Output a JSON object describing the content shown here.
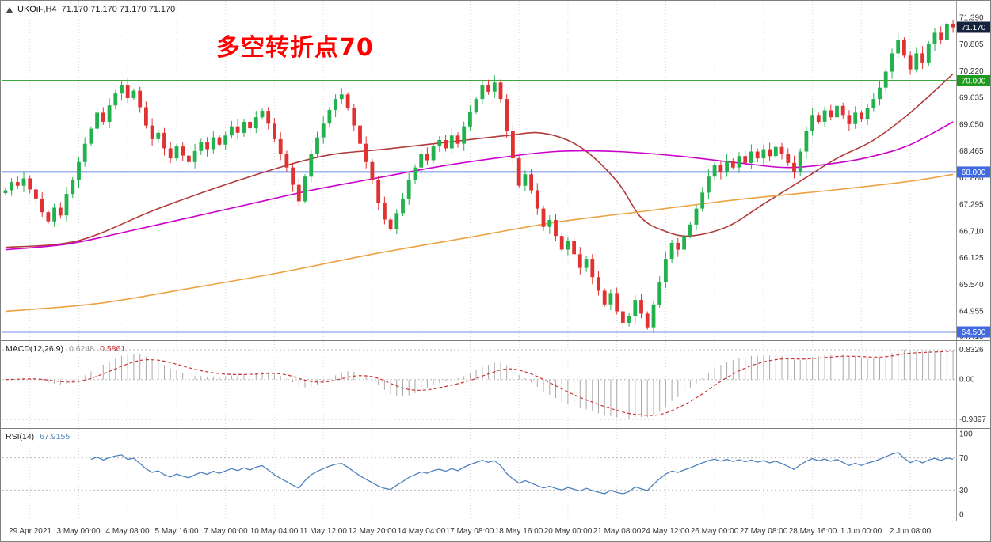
{
  "window": {
    "title": "UKOil-,H4",
    "ohlc": "71.170 71.170 71.170 71.170"
  },
  "annotation": {
    "text": "多空转折点70",
    "color": "#FF0000"
  },
  "colors": {
    "bull": "#22b14c",
    "bear": "#e03232",
    "grid": "#d8d8d8",
    "panel_border": "#7f7f7f",
    "scale_text": "#333333",
    "hist": "#a9a9a9",
    "signal": "#cc3333",
    "rsi_line": "#4f81bd",
    "level_dash": "#bcbcbc",
    "current_tag_bg": "#16233f"
  },
  "chart_data": {
    "type": "candlestick",
    "symbol": "UKOil-",
    "timeframe": "H4",
    "title": "UKOil-,H4 71.170 71.170 71.170 71.170",
    "price_axis": {
      "min": 64.3,
      "max": 71.75,
      "ticks": [
        71.39,
        70.805,
        70.22,
        69.635,
        69.05,
        68.465,
        67.88,
        67.295,
        66.71,
        66.125,
        65.54,
        64.955,
        64.415
      ]
    },
    "current_price": 71.17,
    "hlines": [
      {
        "price": 70.0,
        "label": "70.000",
        "color": "#1e9b1e"
      },
      {
        "price": 68.0,
        "label": "68.000",
        "color": "#4169e1"
      },
      {
        "price": 64.5,
        "label": "64.500",
        "color": "#4169e1"
      }
    ],
    "closes": [
      67.6,
      67.78,
      67.7,
      67.86,
      67.62,
      67.42,
      67.12,
      66.92,
      67.22,
      67.05,
      67.52,
      67.82,
      68.22,
      68.62,
      68.95,
      69.3,
      69.1,
      69.46,
      69.72,
      69.9,
      69.62,
      69.78,
      69.42,
      69.02,
      68.72,
      68.86,
      68.52,
      68.3,
      68.56,
      68.36,
      68.22,
      68.46,
      68.66,
      68.5,
      68.76,
      68.6,
      68.8,
      69.0,
      68.86,
      69.1,
      68.96,
      69.2,
      69.34,
      69.06,
      68.72,
      68.4,
      68.1,
      67.72,
      67.36,
      67.9,
      68.4,
      68.76,
      69.06,
      69.36,
      69.6,
      69.7,
      69.4,
      69.02,
      68.62,
      68.22,
      67.82,
      67.32,
      66.96,
      66.76,
      67.1,
      67.42,
      67.82,
      68.1,
      68.4,
      68.26,
      68.56,
      68.7,
      68.52,
      68.8,
      68.62,
      69.0,
      69.32,
      69.6,
      69.9,
      69.76,
      69.96,
      69.6,
      68.9,
      68.3,
      67.7,
      67.95,
      67.6,
      67.2,
      66.8,
      66.95,
      66.6,
      66.3,
      66.5,
      66.2,
      65.9,
      66.1,
      65.7,
      65.4,
      65.1,
      65.35,
      64.95,
      64.7,
      64.85,
      65.2,
      64.9,
      64.6,
      65.1,
      65.6,
      66.1,
      66.45,
      66.3,
      66.6,
      66.85,
      67.2,
      67.55,
      67.9,
      68.15,
      68.0,
      68.25,
      68.1,
      68.35,
      68.2,
      68.45,
      68.3,
      68.5,
      68.35,
      68.55,
      68.4,
      68.2,
      68.0,
      68.45,
      68.9,
      69.25,
      69.1,
      69.35,
      69.2,
      69.45,
      69.25,
      69.05,
      69.3,
      69.15,
      69.4,
      69.6,
      69.85,
      70.2,
      70.6,
      70.9,
      70.55,
      70.25,
      70.6,
      70.4,
      70.8,
      71.05,
      70.9,
      71.25,
      71.17
    ],
    "ma_lines": [
      {
        "name": "ma-line-red",
        "color": "#b03a3a",
        "points": [
          [
            0,
            66.35
          ],
          [
            12,
            66.5
          ],
          [
            25,
            67.2
          ],
          [
            40,
            67.9
          ],
          [
            52,
            68.35
          ],
          [
            62,
            68.5
          ],
          [
            72,
            68.65
          ],
          [
            82,
            68.8
          ],
          [
            88,
            68.85
          ],
          [
            94,
            68.55
          ],
          [
            100,
            67.8
          ],
          [
            104,
            67.0
          ],
          [
            108,
            66.7
          ],
          [
            112,
            66.6
          ],
          [
            118,
            66.8
          ],
          [
            124,
            67.3
          ],
          [
            130,
            67.8
          ],
          [
            136,
            68.3
          ],
          [
            142,
            68.7
          ],
          [
            148,
            69.3
          ],
          [
            155,
            70.15
          ]
        ]
      },
      {
        "name": "ma-line-magenta",
        "color": "#cc00cc",
        "points": [
          [
            0,
            66.3
          ],
          [
            10,
            66.42
          ],
          [
            20,
            66.7
          ],
          [
            30,
            67.0
          ],
          [
            40,
            67.3
          ],
          [
            50,
            67.6
          ],
          [
            60,
            67.85
          ],
          [
            70,
            68.1
          ],
          [
            80,
            68.3
          ],
          [
            90,
            68.45
          ],
          [
            100,
            68.45
          ],
          [
            110,
            68.35
          ],
          [
            120,
            68.2
          ],
          [
            128,
            68.1
          ],
          [
            136,
            68.2
          ],
          [
            142,
            68.35
          ],
          [
            148,
            68.6
          ],
          [
            155,
            69.1
          ]
        ]
      },
      {
        "name": "ma-line-orange",
        "color": "#eda243",
        "points": [
          [
            0,
            64.95
          ],
          [
            15,
            65.12
          ],
          [
            30,
            65.45
          ],
          [
            45,
            65.8
          ],
          [
            60,
            66.2
          ],
          [
            75,
            66.55
          ],
          [
            90,
            66.9
          ],
          [
            105,
            67.15
          ],
          [
            120,
            67.4
          ],
          [
            135,
            67.6
          ],
          [
            148,
            67.8
          ],
          [
            155,
            67.95
          ]
        ]
      }
    ],
    "time_labels": [
      "29 Apr 2021",
      "3 May 00:00",
      "4 May 08:00",
      "5 May 16:00",
      "7 May 00:00",
      "10 May 04:00",
      "11 May 12:00",
      "12 May 20:00",
      "14 May 04:00",
      "17 May 08:00",
      "18 May 16:00",
      "20 May 00:00",
      "21 May 08:00",
      "24 May 12:00",
      "26 May 00:00",
      "27 May 08:00",
      "28 May 16:00",
      "1 Jun 00:00",
      "2 Jun 08:00"
    ],
    "first_label_index": 4,
    "bars_per_label": 8,
    "macd": {
      "label": "MACD(12,26,9)",
      "value_main": "0.6248",
      "value_signal": "0.5861",
      "fast": 12,
      "slow": 26,
      "signal": 9,
      "axis_max": "0.8326",
      "axis_zero": "0.00",
      "axis_min": "-0.9897"
    },
    "rsi": {
      "label": "RSI(14)",
      "value": "67.9155",
      "period": 14,
      "axis_labels": [
        100,
        70,
        30,
        0
      ],
      "levels": [
        70,
        30
      ]
    }
  }
}
